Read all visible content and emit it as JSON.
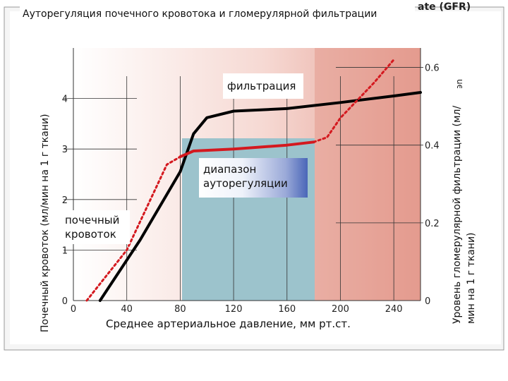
{
  "title": "Ауторегуляция почечного кровотока и гломерулярной фильтрации",
  "clipped_header_text": "ate (GFR)",
  "clipped_right_axis_text": "ue)",
  "colors": {
    "background_left": "#ffffff",
    "background_right": "#e39a8e",
    "autoregulation_band": "#9cc3cc",
    "renal_flow_line": "#000000",
    "gfr_line": "#d4191f"
  },
  "labels": {
    "filtration": "фильтрация",
    "autoregulation_line1": "диапазон",
    "autoregulation_line2": "ауторегуляции",
    "renal_flow_line1": "почечный",
    "renal_flow_line2": "кровоток"
  },
  "chart_data": {
    "type": "line",
    "title": "Ауторегуляция почечного кровотока и гломерулярной фильтрации",
    "xlabel": "Среднее артериальное давление, мм рт.ст.",
    "ylabel_left": "Почечный кровоток (мл/мин на 1 г ткани)",
    "ylabel_right": "Уровень гломерулярной фильтрации (мл/мин на 1 г ткани)",
    "xlim": [
      0,
      260
    ],
    "ylim_left": [
      0,
      5
    ],
    "ylim_right": [
      0,
      0.65
    ],
    "x_ticks": [
      "0",
      "40",
      "80",
      "120",
      "160",
      "200",
      "240"
    ],
    "y_ticks_left": [
      "0",
      "1",
      "2",
      "3",
      "4"
    ],
    "y_ticks_right": [
      "0",
      "0.2",
      "0.4",
      "0.6"
    ],
    "autoregulation_range": [
      80,
      180
    ],
    "grid": true,
    "series": [
      {
        "name": "почечный кровоток",
        "axis": "left",
        "style": "solid",
        "points": [
          [
            20,
            0
          ],
          [
            50,
            1.2
          ],
          [
            80,
            2.55
          ],
          [
            90,
            3.3
          ],
          [
            100,
            3.62
          ],
          [
            120,
            3.75
          ],
          [
            160,
            3.8
          ],
          [
            200,
            3.92
          ],
          [
            240,
            4.05
          ],
          [
            260,
            4.12
          ]
        ]
      },
      {
        "name": "фильтрация",
        "axis": "right",
        "style": "solid",
        "points": [
          [
            80,
            0.37
          ],
          [
            90,
            0.385
          ],
          [
            120,
            0.39
          ],
          [
            160,
            0.4
          ],
          [
            180,
            0.408
          ]
        ]
      },
      {
        "name": "фильтрация",
        "axis": "right",
        "style": "dashed",
        "points": [
          [
            10,
            0
          ],
          [
            40,
            0.13
          ],
          [
            70,
            0.35
          ],
          [
            80,
            0.37
          ]
        ]
      },
      {
        "name": "фильтрация",
        "axis": "right",
        "style": "dashed",
        "points": [
          [
            180,
            0.408
          ],
          [
            190,
            0.42
          ],
          [
            200,
            0.47
          ],
          [
            225,
            0.56
          ],
          [
            240,
            0.62
          ]
        ]
      }
    ]
  }
}
